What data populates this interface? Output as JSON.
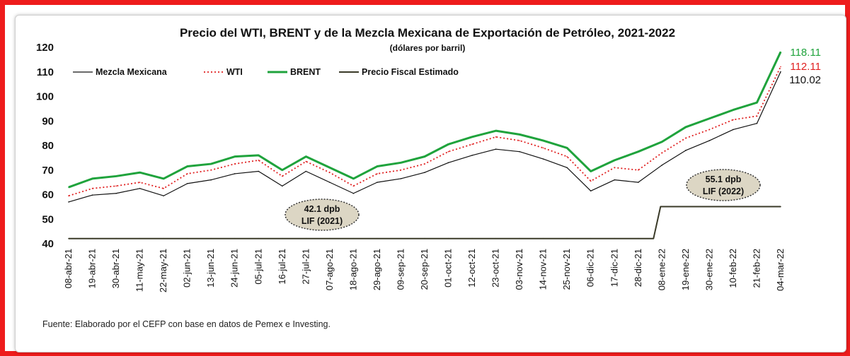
{
  "chart_data": {
    "type": "line",
    "title": "Precio del WTI, BRENT y de la Mezcla Mexicana de Exportación de Petróleo, 2021-2022",
    "subtitle": "(dólares por barril)",
    "xlabel": "",
    "ylabel": "",
    "ylim": [
      40,
      120
    ],
    "yticks": [
      40,
      50,
      60,
      70,
      80,
      90,
      100,
      110,
      120
    ],
    "grid": false,
    "legend_position": "top-left",
    "categories": [
      "08-abr-21",
      "19-abr-21",
      "30-abr-21",
      "11-may-21",
      "22-may-21",
      "02-jun-21",
      "13-jun-21",
      "24-jun-21",
      "05-jul-21",
      "16-jul-21",
      "27-jul-21",
      "07-ago-21",
      "18-ago-21",
      "29-ago-21",
      "09-sep-21",
      "20-sep-21",
      "01-oct-21",
      "12-oct-21",
      "23-oct-21",
      "03-nov-21",
      "14-nov-21",
      "25-nov-21",
      "06-dic-21",
      "17-dic-21",
      "28-dic-21",
      "08-ene-22",
      "19-ene-22",
      "30-ene-22",
      "10-feb-22",
      "21-feb-22",
      "04-mar-22"
    ],
    "series": [
      {
        "name": "Mezcla Mexicana",
        "color": "#111111",
        "style": "solid",
        "values": [
          57.0,
          59.8,
          60.5,
          62.5,
          59.5,
          64.5,
          66.0,
          68.5,
          69.5,
          63.5,
          69.5,
          65.0,
          60.5,
          65.0,
          66.5,
          69.0,
          73.0,
          76.0,
          78.5,
          77.5,
          74.5,
          71.0,
          61.5,
          66.0,
          65.0,
          72.0,
          78.0,
          82.0,
          86.5,
          89.0,
          110.02
        ]
      },
      {
        "name": "WTI",
        "color": "#e02020",
        "style": "dotted",
        "values": [
          59.5,
          62.5,
          63.5,
          65.0,
          62.5,
          68.5,
          70.0,
          72.5,
          74.0,
          67.5,
          73.5,
          69.0,
          63.5,
          68.5,
          70.0,
          72.5,
          77.5,
          80.5,
          83.5,
          82.0,
          79.0,
          75.5,
          65.5,
          71.0,
          70.0,
          77.0,
          83.0,
          86.5,
          90.5,
          92.0,
          112.11
        ]
      },
      {
        "name": "BRENT",
        "color": "#1fa33c",
        "style": "thick",
        "values": [
          63.0,
          66.5,
          67.5,
          69.0,
          66.5,
          71.5,
          72.5,
          75.5,
          76.0,
          70.0,
          75.5,
          71.0,
          66.5,
          71.5,
          73.0,
          75.5,
          80.5,
          83.5,
          86.0,
          84.5,
          82.0,
          79.0,
          69.5,
          74.0,
          77.5,
          81.5,
          87.5,
          91.0,
          94.5,
          97.5,
          118.11
        ]
      },
      {
        "name": "Precio Fiscal Estimado",
        "color": "#3a3a28",
        "style": "solid",
        "values": [
          42.1,
          42.1,
          42.1,
          42.1,
          42.1,
          42.1,
          42.1,
          42.1,
          42.1,
          42.1,
          42.1,
          42.1,
          42.1,
          42.1,
          42.1,
          42.1,
          42.1,
          42.1,
          42.1,
          42.1,
          42.1,
          42.1,
          42.1,
          42.1,
          42.1,
          55.1,
          55.1,
          55.1,
          55.1,
          55.1,
          55.1
        ]
      }
    ],
    "end_labels": [
      {
        "text": "118.11",
        "color": "#1fa33c"
      },
      {
        "text": "112.11",
        "color": "#e02020"
      },
      {
        "text": "110.02",
        "color": "#111111"
      }
    ],
    "annotations": [
      {
        "line1": "42.1 dpb",
        "line2": "LIF (2021)"
      },
      {
        "line1": "55.1 dpb",
        "line2": "LIF (2022)"
      }
    ],
    "source": "Fuente: Elaborado por el CEFP con base en datos de Pemex e Investing."
  }
}
